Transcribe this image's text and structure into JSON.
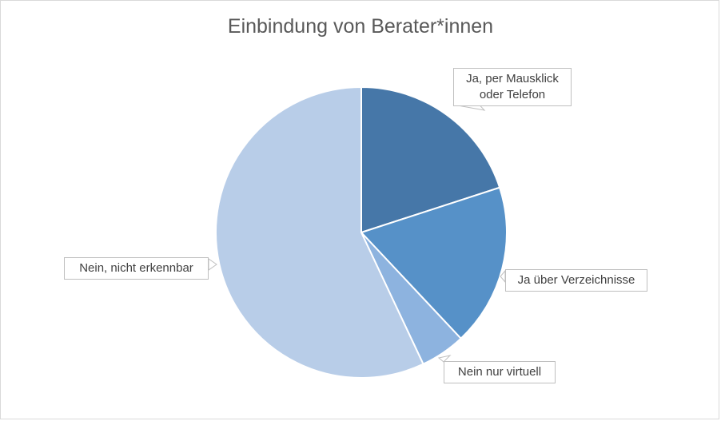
{
  "chart_data": {
    "type": "pie",
    "title": "Einbindung von Berater*innen",
    "categories": [
      "Ja, per Mausklick\noder Telefon",
      "Ja über Verzeichnisse",
      "Nein nur virtuell",
      "Nein, nicht erkennbar"
    ],
    "values": [
      20,
      18,
      5,
      57
    ],
    "colors": [
      "#4677a8",
      "#5691c8",
      "#8db3df",
      "#b8cde8"
    ],
    "legend": "none",
    "start_angle_deg": 0,
    "direction": "clockwise"
  }
}
